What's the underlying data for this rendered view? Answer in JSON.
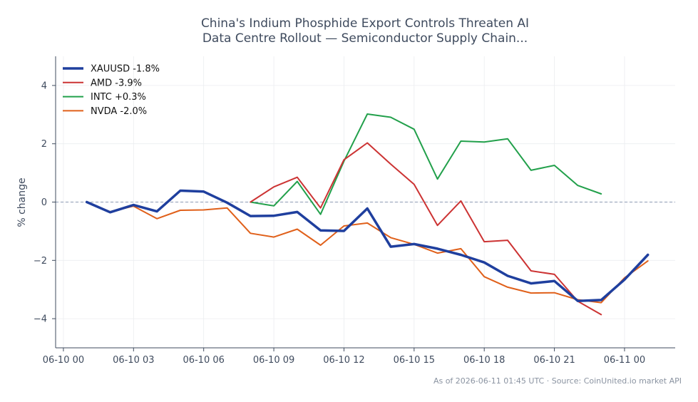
{
  "chart_data": {
    "type": "line",
    "title": [
      "China's Indium Phosphide Export Controls Threaten AI",
      "Data Centre Rollout — Semiconductor Supply Chain..."
    ],
    "xlabel": "",
    "ylabel": "% change",
    "source": "As of 2026-06-11 01:45 UTC · Source: CoinUnited.io market API",
    "xlim": [
      "2026-06-09 23:40",
      "2026-06-11 02:10"
    ],
    "ylim": [
      -5,
      5
    ],
    "yticks": [
      -4,
      -2,
      0,
      2,
      4
    ],
    "ytick_labels": [
      "−4",
      "−2",
      "0",
      "2",
      "4"
    ],
    "xticks": [
      "2026-06-10 00:00",
      "2026-06-10 03:00",
      "2026-06-10 06:00",
      "2026-06-10 09:00",
      "2026-06-10 12:00",
      "2026-06-10 15:00",
      "2026-06-10 18:00",
      "2026-06-10 21:00",
      "2026-06-11 00:00"
    ],
    "xtick_labels": [
      "06-10 00",
      "06-10 03",
      "06-10 06",
      "06-10 09",
      "06-10 12",
      "06-10 15",
      "06-10 18",
      "06-10 21",
      "06-11 00"
    ],
    "grid": true,
    "reference_line": 0,
    "legend_position": "top-left",
    "series": [
      {
        "name": "XAUUSD -1.8%",
        "color": "#1f3f9e",
        "x": [
          "2026-06-10 01:00",
          "2026-06-10 02:00",
          "2026-06-10 03:00",
          "2026-06-10 04:00",
          "2026-06-10 05:00",
          "2026-06-10 06:00",
          "2026-06-10 07:00",
          "2026-06-10 08:00",
          "2026-06-10 09:00",
          "2026-06-10 10:00",
          "2026-06-10 11:00",
          "2026-06-10 12:00",
          "2026-06-10 13:00",
          "2026-06-10 14:00",
          "2026-06-10 15:00",
          "2026-06-10 16:00",
          "2026-06-10 17:00",
          "2026-06-10 18:00",
          "2026-06-10 19:00",
          "2026-06-10 20:00",
          "2026-06-10 21:00",
          "2026-06-10 22:00",
          "2026-06-10 23:00",
          "2026-06-11 00:00",
          "2026-06-11 01:00"
        ],
        "values": [
          0.0,
          -0.35,
          -0.1,
          -0.32,
          0.39,
          0.36,
          -0.02,
          -0.48,
          -0.47,
          -0.34,
          -0.97,
          -0.99,
          -0.22,
          -1.53,
          -1.44,
          -1.6,
          -1.81,
          -2.07,
          -2.53,
          -2.79,
          -2.71,
          -3.39,
          -3.36,
          -2.66,
          -1.81
        ]
      },
      {
        "name": "AMD -3.9%",
        "color": "#cc3333",
        "x": [
          "2026-06-10 01:00",
          "2026-06-10 02:00",
          "2026-06-10 03:00",
          "2026-06-10 04:00",
          "2026-06-10 05:00",
          "2026-06-10 06:00",
          "2026-06-10 07:00",
          "2026-06-10 08:00",
          "2026-06-10 09:00",
          "2026-06-10 10:00",
          "2026-06-10 11:00",
          "2026-06-10 12:00",
          "2026-06-10 13:00",
          "2026-06-10 14:00",
          "2026-06-10 15:00",
          "2026-06-10 16:00",
          "2026-06-10 17:00",
          "2026-06-10 18:00",
          "2026-06-10 19:00",
          "2026-06-10 20:00",
          "2026-06-10 21:00",
          "2026-06-10 22:00",
          "2026-06-10 23:00"
        ],
        "values": [
          0.0,
          -0.36,
          null,
          null,
          null,
          null,
          null,
          0.0,
          0.52,
          0.85,
          -0.2,
          1.45,
          2.03,
          1.3,
          0.61,
          -0.8,
          0.04,
          -1.36,
          -1.31,
          -2.36,
          -2.48,
          -3.4,
          -3.86
        ]
      },
      {
        "name": "INTC +0.3%",
        "color": "#22a04b",
        "x": [
          "2026-06-10 08:00",
          "2026-06-10 09:00",
          "2026-06-10 10:00",
          "2026-06-10 11:00",
          "2026-06-10 12:00",
          "2026-06-10 13:00",
          "2026-06-10 14:00",
          "2026-06-10 15:00",
          "2026-06-10 16:00",
          "2026-06-10 17:00",
          "2026-06-10 18:00",
          "2026-06-10 19:00",
          "2026-06-10 20:00",
          "2026-06-10 21:00",
          "2026-06-10 22:00",
          "2026-06-10 23:00"
        ],
        "values": [
          0.0,
          -0.13,
          0.71,
          -0.42,
          1.4,
          3.02,
          2.91,
          2.5,
          0.79,
          2.09,
          2.06,
          2.17,
          1.09,
          1.26,
          0.57,
          0.28
        ]
      },
      {
        "name": "NVDA -2.0%",
        "color": "#e0601a",
        "x": [
          "2026-06-10 01:00",
          "2026-06-10 02:00",
          "2026-06-10 03:00",
          "2026-06-10 04:00",
          "2026-06-10 05:00",
          "2026-06-10 06:00",
          "2026-06-10 07:00",
          "2026-06-10 08:00",
          "2026-06-10 09:00",
          "2026-06-10 10:00",
          "2026-06-10 11:00",
          "2026-06-10 12:00",
          "2026-06-10 13:00",
          "2026-06-10 14:00",
          "2026-06-10 15:00",
          "2026-06-10 16:00",
          "2026-06-10 17:00",
          "2026-06-10 18:00",
          "2026-06-10 19:00",
          "2026-06-10 20:00",
          "2026-06-10 21:00",
          "2026-06-10 22:00",
          "2026-06-10 23:00",
          "2026-06-11 00:00",
          "2026-06-11 01:00"
        ],
        "values": [
          0.0,
          -0.33,
          -0.14,
          -0.57,
          -0.28,
          -0.27,
          -0.2,
          -1.07,
          -1.2,
          -0.93,
          -1.48,
          -0.82,
          -0.72,
          -1.22,
          -1.45,
          -1.75,
          -1.6,
          -2.56,
          -2.92,
          -3.12,
          -3.11,
          -3.35,
          -3.45,
          -2.6,
          -2.02
        ]
      }
    ]
  }
}
